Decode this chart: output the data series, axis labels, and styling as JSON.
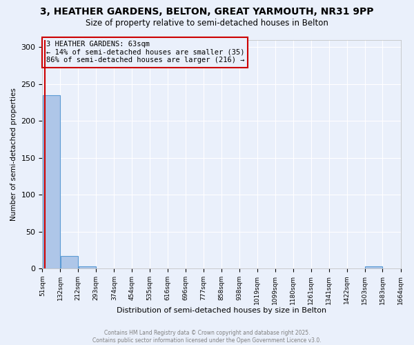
{
  "title_line1": "3, HEATHER GARDENS, BELTON, GREAT YARMOUTH, NR31 9PP",
  "title_line2": "Size of property relative to semi-detached houses in Belton",
  "xlabel": "Distribution of semi-detached houses by size in Belton",
  "ylabel": "Number of semi-detached properties",
  "bin_edges": [
    51,
    132,
    212,
    293,
    374,
    454,
    535,
    616,
    696,
    777,
    858,
    938,
    1019,
    1099,
    1180,
    1261,
    1341,
    1422,
    1503,
    1583,
    1664
  ],
  "bar_heights": [
    235,
    17,
    3,
    0,
    0,
    0,
    0,
    0,
    0,
    0,
    0,
    0,
    0,
    0,
    0,
    0,
    0,
    0,
    3,
    0
  ],
  "bar_color": "#aec6e8",
  "bar_edge_color": "#5b9bd5",
  "property_size": 63,
  "property_label": "3 HEATHER GARDENS: 63sqm",
  "pct_smaller": 14,
  "pct_larger": 86,
  "count_smaller": 35,
  "count_larger": 216,
  "red_line_color": "#cc0000",
  "ylim": [
    0,
    310
  ],
  "yticks": [
    0,
    50,
    100,
    150,
    200,
    250,
    300
  ],
  "footer_line1": "Contains HM Land Registry data © Crown copyright and database right 2025.",
  "footer_line2": "Contains public sector information licensed under the Open Government Licence v3.0.",
  "background_color": "#eaf0fb",
  "grid_color": "#ffffff"
}
